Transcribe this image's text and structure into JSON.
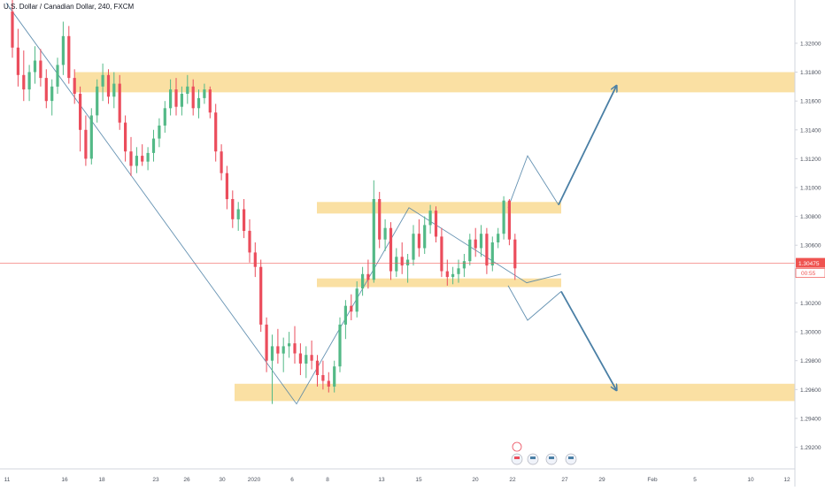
{
  "chart_data": {
    "type": "candlestick",
    "title": "U.S. Dollar / Canadian Dollar, 240, FXCM",
    "colors": {
      "up": "#53b987",
      "down": "#eb4d5c",
      "zone": "#f7cd6b",
      "line": "#4a7fa5",
      "price_line": "#ef5350",
      "text": "#131722",
      "axis_text": "#4c525e",
      "border": "#d1d4dc"
    },
    "y_axis": {
      "min": 1.2905,
      "max": 1.323,
      "ticks": [
        "1.32000",
        "1.31800",
        "1.31600",
        "1.31400",
        "1.31200",
        "1.31000",
        "1.30800",
        "1.30600",
        "1.30400",
        "1.30200",
        "1.30000",
        "1.29800",
        "1.29600",
        "1.29400",
        "1.29200"
      ]
    },
    "x_axis": {
      "ticks": [
        "11",
        "16",
        "18",
        "23",
        "26",
        "30",
        "2020",
        "6",
        "8",
        "13",
        "15",
        "20",
        "22",
        "27",
        "29",
        "Feb",
        "5",
        "10",
        "12"
      ]
    },
    "current_price": {
      "value": 1.30475,
      "label": "1.30475",
      "countdown": "00:55"
    },
    "zones": [
      {
        "name": "upper-resistance",
        "low": 1.3166,
        "high": 1.318
      },
      {
        "name": "range-top",
        "low": 1.3082,
        "high": 1.309
      },
      {
        "name": "range-bottom",
        "low": 1.3031,
        "high": 1.3037
      },
      {
        "name": "lower-support",
        "low": 1.2952,
        "high": 1.2964
      }
    ],
    "trend_path": [
      1.3228,
      1.295,
      1.3086,
      1.3034,
      1.304
    ],
    "scenario_up": [
      1.3086,
      1.3122,
      1.3088,
      1.317
    ],
    "scenario_down": [
      1.3032,
      1.3008,
      1.3028,
      1.296
    ],
    "candles": [
      [
        1.3222,
        1.3236,
        1.319,
        1.3197
      ],
      [
        1.3197,
        1.321,
        1.317,
        1.3178
      ],
      [
        1.3178,
        1.3195,
        1.316,
        1.3168
      ],
      [
        1.3168,
        1.3185,
        1.316,
        1.318
      ],
      [
        1.318,
        1.3198,
        1.3172,
        1.3188
      ],
      [
        1.3188,
        1.3196,
        1.317,
        1.3176
      ],
      [
        1.3176,
        1.3182,
        1.3155,
        1.316
      ],
      [
        1.316,
        1.3175,
        1.315,
        1.317
      ],
      [
        1.317,
        1.319,
        1.3165,
        1.3185
      ],
      [
        1.3185,
        1.3215,
        1.3178,
        1.3205
      ],
      [
        1.3205,
        1.3212,
        1.3172,
        1.3176
      ],
      [
        1.3176,
        1.3182,
        1.3158,
        1.3165
      ],
      [
        1.3165,
        1.317,
        1.3125,
        1.314
      ],
      [
        1.314,
        1.315,
        1.3115,
        1.312
      ],
      [
        1.312,
        1.3155,
        1.3116,
        1.315
      ],
      [
        1.315,
        1.3175,
        1.3145,
        1.317
      ],
      [
        1.317,
        1.3186,
        1.316,
        1.3178
      ],
      [
        1.3178,
        1.3182,
        1.3158,
        1.3163
      ],
      [
        1.3163,
        1.318,
        1.3155,
        1.3172
      ],
      [
        1.3172,
        1.3178,
        1.314,
        1.3145
      ],
      [
        1.3145,
        1.315,
        1.3118,
        1.3125
      ],
      [
        1.3125,
        1.3135,
        1.3108,
        1.3115
      ],
      [
        1.3115,
        1.3128,
        1.311,
        1.3122
      ],
      [
        1.3122,
        1.313,
        1.3115,
        1.3118
      ],
      [
        1.3118,
        1.3128,
        1.3112,
        1.3124
      ],
      [
        1.3124,
        1.314,
        1.3118,
        1.3134
      ],
      [
        1.3134,
        1.3148,
        1.3128,
        1.3143
      ],
      [
        1.3143,
        1.316,
        1.3138,
        1.3155
      ],
      [
        1.3155,
        1.3175,
        1.315,
        1.3168
      ],
      [
        1.3168,
        1.3176,
        1.315,
        1.3156
      ],
      [
        1.3156,
        1.317,
        1.315,
        1.3165
      ],
      [
        1.3165,
        1.3178,
        1.3158,
        1.317
      ],
      [
        1.317,
        1.3175,
        1.315,
        1.3155
      ],
      [
        1.3155,
        1.3168,
        1.3148,
        1.3162
      ],
      [
        1.3162,
        1.3172,
        1.3158,
        1.3168
      ],
      [
        1.3168,
        1.317,
        1.3148,
        1.3152
      ],
      [
        1.3152,
        1.3158,
        1.3118,
        1.3125
      ],
      [
        1.3125,
        1.313,
        1.3105,
        1.311
      ],
      [
        1.311,
        1.3115,
        1.3085,
        1.3092
      ],
      [
        1.3092,
        1.3098,
        1.3072,
        1.3078
      ],
      [
        1.3078,
        1.309,
        1.307,
        1.3085
      ],
      [
        1.3085,
        1.3092,
        1.3065,
        1.307
      ],
      [
        1.307,
        1.3078,
        1.3048,
        1.3055
      ],
      [
        1.3055,
        1.3062,
        1.3038,
        1.3045
      ],
      [
        1.3045,
        1.305,
        1.3,
        1.3005
      ],
      [
        1.3005,
        1.301,
        1.2972,
        1.298
      ],
      [
        1.298,
        1.2998,
        1.295,
        1.299
      ],
      [
        1.299,
        1.3002,
        1.2978,
        1.2985
      ],
      [
        1.2985,
        1.2996,
        1.2972,
        1.299
      ],
      [
        1.299,
        1.3,
        1.2982,
        1.2992
      ],
      [
        1.2992,
        1.3004,
        1.2978,
        1.2985
      ],
      [
        1.2985,
        1.2992,
        1.297,
        1.2978
      ],
      [
        1.2978,
        1.299,
        1.2968,
        1.2984
      ],
      [
        1.2984,
        1.2994,
        1.2974,
        1.298
      ],
      [
        1.298,
        1.2984,
        1.2962,
        1.297
      ],
      [
        1.297,
        1.298,
        1.296,
        1.2966
      ],
      [
        1.2966,
        1.2972,
        1.2958,
        1.2962
      ],
      [
        1.2962,
        1.298,
        1.2958,
        1.2976
      ],
      [
        1.2976,
        1.301,
        1.2972,
        1.3005
      ],
      [
        1.3005,
        1.3022,
        1.2995,
        1.3018
      ],
      [
        1.3018,
        1.3026,
        1.3008,
        1.3014
      ],
      [
        1.3014,
        1.3035,
        1.301,
        1.303
      ],
      [
        1.303,
        1.3045,
        1.3025,
        1.304
      ],
      [
        1.304,
        1.305,
        1.303,
        1.3036
      ],
      [
        1.3036,
        1.3105,
        1.3034,
        1.3092
      ],
      [
        1.3092,
        1.3097,
        1.3058,
        1.3064
      ],
      [
        1.3064,
        1.3078,
        1.3056,
        1.3072
      ],
      [
        1.3072,
        1.3076,
        1.3036,
        1.3042
      ],
      [
        1.3042,
        1.3058,
        1.3038,
        1.3052
      ],
      [
        1.3052,
        1.3062,
        1.304,
        1.3046
      ],
      [
        1.3046,
        1.3054,
        1.3034,
        1.305
      ],
      [
        1.305,
        1.3074,
        1.3046,
        1.3068
      ],
      [
        1.3068,
        1.3078,
        1.3052,
        1.3058
      ],
      [
        1.3058,
        1.308,
        1.3054,
        1.3074
      ],
      [
        1.3074,
        1.3088,
        1.3068,
        1.3084
      ],
      [
        1.3084,
        1.3087,
        1.3062,
        1.3066
      ],
      [
        1.3066,
        1.3072,
        1.3038,
        1.3042
      ],
      [
        1.3042,
        1.305,
        1.3032,
        1.3038
      ],
      [
        1.3038,
        1.3045,
        1.3033,
        1.304
      ],
      [
        1.304,
        1.305,
        1.3034,
        1.3044
      ],
      [
        1.3044,
        1.3054,
        1.3038,
        1.3049
      ],
      [
        1.3049,
        1.3068,
        1.3046,
        1.3064
      ],
      [
        1.3064,
        1.3072,
        1.3052,
        1.3058
      ],
      [
        1.3058,
        1.3074,
        1.3052,
        1.3068
      ],
      [
        1.3068,
        1.3072,
        1.304,
        1.3046
      ],
      [
        1.3046,
        1.3066,
        1.3042,
        1.3062
      ],
      [
        1.3062,
        1.3072,
        1.3058,
        1.3068
      ],
      [
        1.3068,
        1.3094,
        1.3064,
        1.3091
      ],
      [
        1.3091,
        1.3092,
        1.306,
        1.3064
      ],
      [
        1.3064,
        1.3068,
        1.3036,
        1.3044
      ]
    ]
  }
}
